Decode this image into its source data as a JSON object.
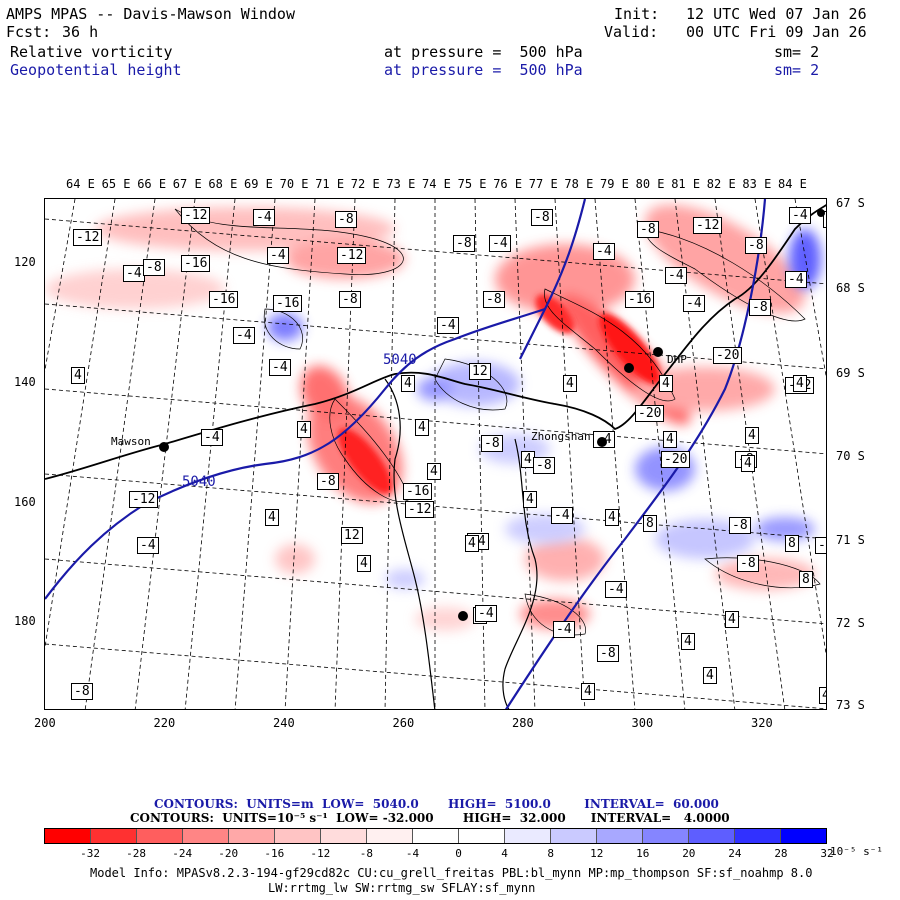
{
  "header": {
    "title": "AMPS MPAS -- Davis-Mawson Window",
    "forecast_label": "Fcst:",
    "forecast_value": "36 h",
    "init_label": "Init:",
    "init_value": "12 UTC Wed 07 Jan 26",
    "valid_label": "Valid:",
    "valid_value": "00 UTC Fri 09 Jan 26"
  },
  "fields": [
    {
      "name": "Relative vorticity",
      "pressure": "at pressure =  500 hPa",
      "smooth": "sm= 2",
      "color": "#000000"
    },
    {
      "name": "Geopotential height",
      "pressure": "at pressure =  500 hPa",
      "smooth": "sm= 2",
      "color": "#1a1aa8"
    }
  ],
  "map": {
    "top_lon_labels": [
      "64 E",
      "65 E",
      "66 E",
      "67 E",
      "68 E",
      "69 E",
      "70 E",
      "71 E",
      "72 E",
      "73 E",
      "74 E",
      "75 E",
      "76 E",
      "77 E",
      "78 E",
      "79 E",
      "80 E",
      "81 E",
      "82 E",
      "83 E",
      "84 E"
    ],
    "right_lat_labels": [
      "67 S",
      "68 S",
      "69 S",
      "70 S",
      "71 S",
      "72 S",
      "73 S"
    ],
    "left_y_labels": [
      "120",
      "140",
      "160",
      "180"
    ],
    "bottom_x_labels": [
      "200",
      "220",
      "240",
      "260",
      "280",
      "300",
      "320"
    ],
    "stations": [
      {
        "name": "Mawson"
      },
      {
        "name": "Zhongshan"
      },
      {
        "name": "DHP"
      }
    ],
    "height_contour_labels": [
      "5040",
      "5040"
    ],
    "vorticity_labels": [
      "-12",
      "-4",
      "-12",
      "-8",
      "-8",
      "-12",
      "-16",
      "-4",
      "-4",
      "-8",
      "-16",
      "-12",
      "-8",
      "-4",
      "-4",
      "-8",
      "-4",
      "-8",
      "-4",
      "-12",
      "-16",
      "-8",
      "-4",
      "-4",
      "-8",
      "-16",
      "-4",
      "-8",
      "-4",
      "-12",
      "4",
      "-4",
      "4",
      "12",
      "4",
      "4",
      "-20",
      "4",
      "-20",
      "4",
      "-4",
      "4",
      "-8",
      "4",
      "-8",
      "-4",
      "4",
      "-8",
      "4",
      "4",
      "4",
      "-12",
      "-4",
      "4",
      "-4",
      "4",
      "8",
      "-8",
      "8",
      "-8",
      "8",
      "-12",
      "-4",
      "4",
      "4",
      "-4",
      "4",
      "4",
      "-4",
      "4",
      "-8",
      "4",
      "-8",
      "-4",
      "4",
      "-8",
      "12",
      "-16",
      "4",
      "-20",
      "-4",
      "4"
    ]
  },
  "contours_info": {
    "line1": "CONTOURS:  UNITS=m  LOW=  5040.0       HIGH=  5100.0        INTERVAL=  60.000",
    "line2": "CONTOURS:  UNITS=10⁻⁵ s⁻¹  LOW= -32.000       HIGH=  32.000      INTERVAL=   4.0000"
  },
  "colorbar": {
    "ticks": [
      "-32",
      "-28",
      "-24",
      "-20",
      "-16",
      "-12",
      "-8",
      "-4",
      "0",
      "4",
      "8",
      "12",
      "16",
      "20",
      "24",
      "28",
      "32"
    ],
    "units": "10⁻⁵ s⁻¹",
    "colors": [
      "#ff0000",
      "#ff3131",
      "#ff5e5e",
      "#ff8585",
      "#ffa8a8",
      "#ffc4c4",
      "#ffdcdc",
      "#fff0f0",
      "#ffffff",
      "#ffffff",
      "#eaeaff",
      "#cacaff",
      "#a8a8ff",
      "#8585ff",
      "#5e5eff",
      "#3131ff",
      "#0000ff"
    ]
  },
  "model_info": {
    "line1": "Model Info: MPASv8.2.3-194-gf29cd82c CU:cu_grell_freitas PBL:bl_mynn MP:mp_thompson SF:sf_noahmp 8.0",
    "line2": "LW:rrtmg_lw SW:rrtmg_sw SFLAY:sf_mynn"
  }
}
